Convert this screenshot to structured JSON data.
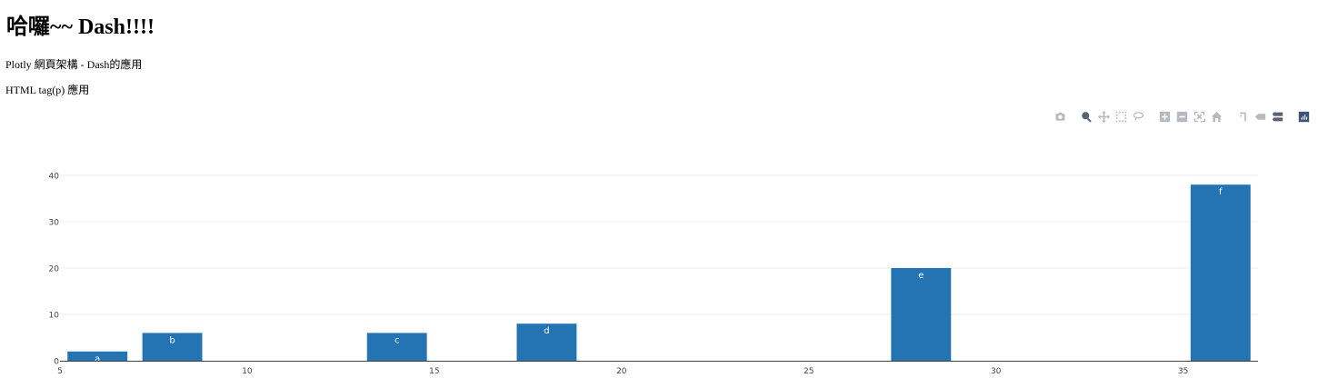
{
  "heading": "哈囉~~ Dash!!!!",
  "paragraphs": {
    "p1": "Plotly 網頁架構 - Dash的應用",
    "p2": "HTML tag(p) 應用"
  },
  "modebar": {
    "buttons": [
      "camera-icon",
      "zoom-icon",
      "pan-icon",
      "box-select-icon",
      "lasso-select-icon",
      "zoom-in-icon",
      "zoom-out-icon",
      "autoscale-icon",
      "reset-axes-icon",
      "spike-lines-icon",
      "hover-closest-icon",
      "hover-compare-icon",
      "plotly-logo-icon"
    ]
  },
  "chart_data": {
    "type": "bar",
    "title": "",
    "xlabel": "",
    "ylabel": "",
    "bar_color": "#2474b4",
    "grid": true,
    "legend": false,
    "xlim": [
      5,
      37
    ],
    "ylim": [
      0,
      40
    ],
    "x_ticks": [
      5,
      10,
      15,
      20,
      25,
      30,
      35
    ],
    "y_ticks": [
      0,
      10,
      20,
      30,
      40
    ],
    "bar_width": 1.6,
    "series": [
      {
        "x": [
          6,
          8,
          14,
          18,
          28,
          36
        ],
        "y": [
          2,
          6,
          6,
          8,
          20,
          38
        ],
        "text": [
          "a",
          "b",
          "c",
          "d",
          "e",
          "f"
        ]
      }
    ]
  }
}
